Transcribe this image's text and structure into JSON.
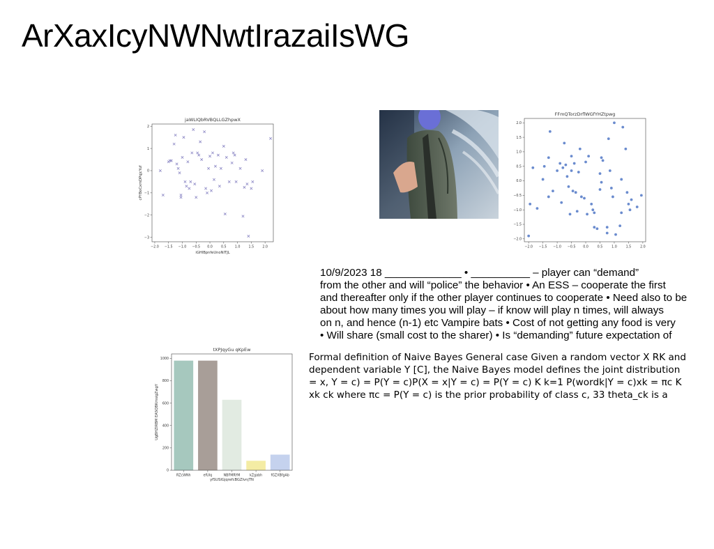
{
  "page": {
    "title": "ArXaxIcyNWNwtIrazaiIsWG"
  },
  "image": {
    "alt": "photo of a person in a jacket in a futuristic corridor"
  },
  "text_block_1": {
    "lines": [
      "10/9/2023 18 _____________ • __________ – player can “demand”",
      "from the other  and will “police” the behavior • An ESS – cooperate the first",
      "and thereafter only if the other player continues to cooperate • Need also to be",
      "about how many times you will play – if know will play n times, will always",
      "on n, and hence (n-1) etc Vampire bats • Cost of not getting any food is very",
      "• Will share (small cost to the sharer) • Is “demanding” future expectation of"
    ]
  },
  "text_block_2": {
    "lines": [
      "Formal definition of Naive Bayes General case Given a random vector X  RK and",
      "dependent variable Y  [C], the Naive Bayes model defines the joint distribution",
      "= x, Y = c) = P(Y = c)P(X = x|Y = c) = P(Y = c) K  k=1 P(wordk|Y = c)xk = πc K ",
      "xk ck where πc = P(Y = c) is the prior probability of class c, 33 theta_ck is a"
    ]
  },
  "chart_data": [
    {
      "type": "scatter",
      "title": "jaWLIQbRVBQLLGZhpwX",
      "xlabel": "iGHlBpnfeUnoNITJL",
      "ylabel": "cPYBoCxmDPqjcYuf",
      "marker": "x",
      "color": "#8a86c4",
      "xlim": [
        -2.1,
        2.3
      ],
      "ylim": [
        -3.2,
        2.1
      ],
      "xticks": [
        -2.0,
        -1.5,
        -1.0,
        -0.5,
        0.0,
        0.5,
        1.0,
        1.5,
        2.0
      ],
      "yticks": [
        -3,
        -2,
        -1,
        0,
        1,
        2
      ],
      "points": [
        [
          -1.8,
          0.0
        ],
        [
          -1.7,
          -1.1
        ],
        [
          -1.5,
          0.4
        ],
        [
          -1.45,
          0.45
        ],
        [
          -1.4,
          0.45
        ],
        [
          -1.3,
          1.2
        ],
        [
          -1.25,
          1.6
        ],
        [
          -1.2,
          0.3
        ],
        [
          -1.15,
          0.1
        ],
        [
          -1.1,
          -0.1
        ],
        [
          -1.05,
          -1.1
        ],
        [
          -1.05,
          -1.2
        ],
        [
          -1.0,
          0.6
        ],
        [
          -0.95,
          1.5
        ],
        [
          -0.9,
          -0.5
        ],
        [
          -0.85,
          -0.7
        ],
        [
          -0.8,
          0.4
        ],
        [
          -0.75,
          -0.8
        ],
        [
          -0.7,
          -0.5
        ],
        [
          -0.65,
          0.8
        ],
        [
          -0.6,
          1.85
        ],
        [
          -0.55,
          -0.6
        ],
        [
          -0.5,
          -1.2
        ],
        [
          -0.45,
          0.8
        ],
        [
          -0.4,
          0.7
        ],
        [
          -0.35,
          1.3
        ],
        [
          -0.3,
          0.5
        ],
        [
          -0.2,
          1.75
        ],
        [
          -0.15,
          -0.8
        ],
        [
          -0.1,
          -1.0
        ],
        [
          -0.05,
          0.1
        ],
        [
          0.0,
          0.65
        ],
        [
          0.05,
          -0.9
        ],
        [
          0.1,
          0.8
        ],
        [
          0.15,
          -0.4
        ],
        [
          0.2,
          0.2
        ],
        [
          0.3,
          0.7
        ],
        [
          0.35,
          -0.7
        ],
        [
          0.4,
          0.1
        ],
        [
          0.5,
          1.1
        ],
        [
          0.55,
          -1.95
        ],
        [
          0.6,
          0.6
        ],
        [
          0.7,
          -0.5
        ],
        [
          0.8,
          0.35
        ],
        [
          0.85,
          0.8
        ],
        [
          0.9,
          0.7
        ],
        [
          0.95,
          -0.5
        ],
        [
          1.1,
          0.1
        ],
        [
          1.2,
          -2.05
        ],
        [
          1.25,
          -0.75
        ],
        [
          1.3,
          0.5
        ],
        [
          1.35,
          -0.6
        ],
        [
          1.4,
          -2.95
        ],
        [
          1.5,
          -0.8
        ],
        [
          1.55,
          -0.5
        ],
        [
          1.9,
          0.0
        ],
        [
          2.2,
          1.45
        ]
      ]
    },
    {
      "type": "scatter",
      "title": "FFmQTorzDrflWGfYHZtpwg",
      "xlabel": "",
      "ylabel": "",
      "marker": "o",
      "color": "#5a7ec9",
      "xlim": [
        -2.15,
        2.1
      ],
      "ylim": [
        -2.1,
        2.15
      ],
      "xticks": [
        -2.0,
        -1.5,
        -1.0,
        -0.5,
        0.0,
        0.5,
        1.0,
        1.5,
        2.0
      ],
      "yticks": [
        -2.0,
        -1.5,
        -1.0,
        -0.5,
        0.0,
        0.5,
        1.0,
        1.5,
        2.0
      ],
      "points": [
        [
          -2.0,
          -1.9
        ],
        [
          -1.95,
          -0.8
        ],
        [
          -1.85,
          0.45
        ],
        [
          -1.7,
          -0.95
        ],
        [
          -1.5,
          0.05
        ],
        [
          -1.45,
          0.5
        ],
        [
          -1.3,
          0.8
        ],
        [
          -1.3,
          -0.55
        ],
        [
          -1.25,
          1.7
        ],
        [
          -1.15,
          -0.35
        ],
        [
          -1.0,
          0.35
        ],
        [
          -0.9,
          0.6
        ],
        [
          -0.85,
          -0.75
        ],
        [
          -0.8,
          0.45
        ],
        [
          -0.75,
          1.3
        ],
        [
          -0.7,
          0.55
        ],
        [
          -0.65,
          0.15
        ],
        [
          -0.6,
          -0.2
        ],
        [
          -0.55,
          -1.15
        ],
        [
          -0.5,
          0.85
        ],
        [
          -0.5,
          0.35
        ],
        [
          -0.45,
          -0.35
        ],
        [
          -0.4,
          0.6
        ],
        [
          -0.35,
          -0.4
        ],
        [
          -0.3,
          -1.05
        ],
        [
          -0.25,
          0.3
        ],
        [
          -0.2,
          1.1
        ],
        [
          -0.15,
          -0.55
        ],
        [
          -0.05,
          -0.6
        ],
        [
          0.0,
          0.65
        ],
        [
          0.05,
          -1.15
        ],
        [
          0.1,
          0.85
        ],
        [
          0.2,
          -0.8
        ],
        [
          0.25,
          -1.0
        ],
        [
          0.3,
          -1.1
        ],
        [
          0.3,
          -1.6
        ],
        [
          0.4,
          -1.65
        ],
        [
          0.5,
          0.25
        ],
        [
          0.5,
          -0.3
        ],
        [
          0.55,
          -0.05
        ],
        [
          0.55,
          0.8
        ],
        [
          0.6,
          0.7
        ],
        [
          0.75,
          -1.6
        ],
        [
          0.75,
          -1.8
        ],
        [
          0.8,
          1.45
        ],
        [
          0.85,
          0.35
        ],
        [
          0.9,
          -0.25
        ],
        [
          0.95,
          -0.55
        ],
        [
          1.0,
          2.0
        ],
        [
          1.05,
          -1.85
        ],
        [
          1.2,
          -1.55
        ],
        [
          1.25,
          0.05
        ],
        [
          1.25,
          -1.1
        ],
        [
          1.3,
          1.85
        ],
        [
          1.4,
          1.1
        ],
        [
          1.45,
          -0.4
        ],
        [
          1.5,
          -0.8
        ],
        [
          1.55,
          -1.0
        ],
        [
          1.6,
          -0.65
        ],
        [
          1.8,
          -0.9
        ],
        [
          1.95,
          -0.5
        ]
      ]
    },
    {
      "type": "bar",
      "title": "tXPJqyGu qKpEw",
      "xlabel": "yfSUSIGjqrefcBGZlvnjTN",
      "ylabel": "UgBHZIRBM EASQBKmsigZwgY",
      "ylim": [
        0,
        1040
      ],
      "yticks": [
        0,
        200,
        400,
        600,
        800,
        1000
      ],
      "categories": [
        "RZcWNh",
        "efUlq",
        "NBFMRYM",
        "kZgabh",
        "fGZXBfgAb"
      ],
      "values": [
        980,
        980,
        630,
        85,
        140
      ],
      "colors": [
        "#a6c8be",
        "#a89e98",
        "#e2ebe2",
        "#f4eca4",
        "#c5d2ee"
      ]
    }
  ]
}
